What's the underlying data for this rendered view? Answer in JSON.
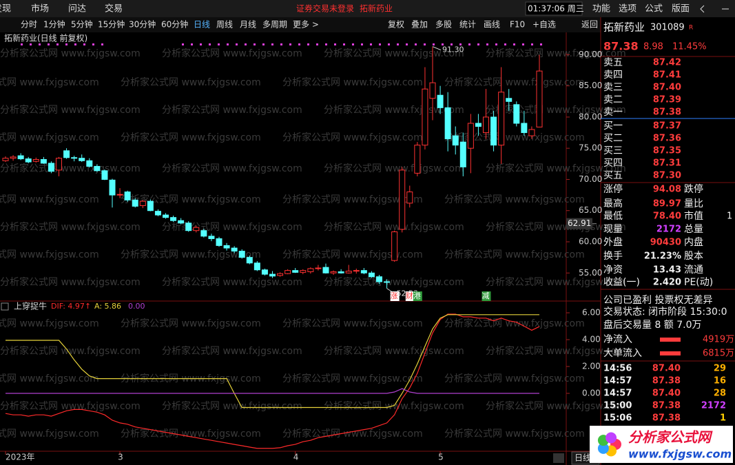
{
  "menu": {
    "left": [
      "发现",
      "市场",
      "问达",
      "交易"
    ],
    "notice": "证券交易未登录",
    "stock": "拓新药业",
    "clock": "01:37:06 周三",
    "right": [
      "功能",
      "选项",
      "公式",
      "版面"
    ]
  },
  "toolbar": {
    "periods": [
      "分时",
      "1分钟",
      "5分钟",
      "15分钟",
      "30分钟",
      "60分钟",
      "日线",
      "周线",
      "月线",
      "多周期",
      "更多 >"
    ],
    "active": 6,
    "tools": [
      "复权",
      "叠加",
      "多股",
      "统计",
      "画线",
      "F10",
      "+自选",
      "返回"
    ]
  },
  "chart_data": [
    {
      "type": "candlestick",
      "title": "拓新药业(日线 前复权)",
      "up_color": "#ff3232",
      "down_color": "#54ffff",
      "ylim": [
        50.5,
        91.7
      ],
      "yticks": [
        {
          "value": 90,
          "label": "90.00"
        },
        {
          "value": 85,
          "label": "85.00"
        },
        {
          "value": 80,
          "label": "80.00"
        },
        {
          "value": 75,
          "label": "75.00"
        },
        {
          "value": 70,
          "label": "70.00"
        },
        {
          "value": 65,
          "label": "65.00"
        },
        {
          "value": 60,
          "label": "60.00"
        },
        {
          "value": 55,
          "label": "55.00"
        }
      ],
      "cursor_value": 62.91,
      "annotations": [
        {
          "index": 56,
          "value": 91.3,
          "label": "91.30"
        },
        {
          "index": 50,
          "value": 52.53
        }
      ],
      "markers": [
        {
          "index": 51,
          "text": "涨",
          "color": "#ff3232"
        },
        {
          "index": 53,
          "text": "财",
          "color": "#ff3232"
        },
        {
          "index": 54,
          "text": "港",
          "color": "#2e9a3a"
        },
        {
          "index": 63,
          "text": "减",
          "color": "#2e9a3a"
        }
      ],
      "ohlc": [
        [
          73.0,
          73.7,
          72.8,
          73.4
        ],
        [
          73.4,
          73.9,
          73.0,
          73.6
        ],
        [
          73.8,
          74.2,
          73.1,
          73.3
        ],
        [
          73.3,
          73.6,
          72.6,
          72.8
        ],
        [
          72.9,
          73.5,
          72.7,
          73.2
        ],
        [
          73.2,
          73.6,
          72.5,
          72.6
        ],
        [
          72.6,
          72.9,
          71.0,
          71.3
        ],
        [
          71.5,
          73.6,
          70.5,
          73.4
        ],
        [
          74.6,
          75.0,
          73.3,
          73.5
        ],
        [
          73.5,
          73.8,
          72.9,
          73.4
        ],
        [
          73.4,
          74.0,
          72.8,
          73.0
        ],
        [
          73.0,
          73.4,
          71.9,
          72.1
        ],
        [
          72.1,
          72.4,
          71.2,
          71.4
        ],
        [
          71.4,
          71.6,
          69.9,
          70.0
        ],
        [
          69.9,
          70.1,
          65.5,
          67.5
        ],
        [
          67.5,
          68.6,
          67.0,
          67.6
        ],
        [
          68.0,
          68.2,
          66.4,
          66.7
        ],
        [
          66.7,
          67.0,
          65.5,
          65.7
        ],
        [
          65.8,
          66.7,
          65.4,
          66.5
        ],
        [
          66.5,
          66.8,
          64.9,
          65.0
        ],
        [
          64.9,
          65.2,
          64.1,
          64.3
        ],
        [
          64.3,
          64.6,
          63.7,
          63.9
        ],
        [
          63.9,
          64.2,
          63.2,
          63.4
        ],
        [
          63.4,
          63.8,
          62.8,
          63.0
        ],
        [
          63.0,
          63.3,
          61.6,
          61.8
        ],
        [
          61.8,
          62.6,
          61.5,
          62.3
        ],
        [
          61.8,
          62.1,
          60.7,
          60.9
        ],
        [
          60.9,
          61.3,
          60.1,
          60.5
        ],
        [
          60.5,
          60.8,
          59.2,
          59.4
        ],
        [
          59.4,
          59.8,
          58.6,
          59.0
        ],
        [
          59.0,
          59.3,
          58.2,
          58.5
        ],
        [
          58.5,
          58.8,
          57.3,
          57.5
        ],
        [
          57.5,
          57.8,
          56.4,
          56.6
        ],
        [
          56.6,
          56.9,
          55.3,
          55.5
        ],
        [
          55.5,
          55.7,
          54.6,
          54.8
        ],
        [
          54.8,
          55.3,
          54.2,
          54.5
        ],
        [
          54.6,
          55.1,
          54.4,
          54.9
        ],
        [
          54.9,
          55.6,
          54.8,
          55.4
        ],
        [
          55.4,
          55.8,
          55.0,
          55.1
        ],
        [
          55.1,
          55.6,
          54.8,
          55.4
        ],
        [
          55.2,
          55.9,
          54.9,
          55.7
        ],
        [
          55.7,
          56.3,
          55.4,
          55.8
        ],
        [
          55.9,
          56.5,
          54.9,
          55.0
        ],
        [
          55.0,
          55.4,
          54.7,
          55.2
        ],
        [
          55.2,
          55.6,
          54.9,
          55.0
        ],
        [
          55.0,
          56.3,
          54.9,
          55.3
        ],
        [
          55.3,
          55.7,
          54.9,
          55.4
        ],
        [
          55.4,
          55.8,
          54.8,
          55.0
        ],
        [
          55.0,
          55.3,
          54.2,
          54.4
        ],
        [
          54.4,
          54.7,
          53.2,
          53.6
        ],
        [
          53.6,
          54.0,
          52.53,
          53.5
        ],
        [
          57.0,
          61.8,
          56.8,
          61.6
        ],
        [
          62.0,
          72.0,
          61.5,
          71.5
        ],
        [
          66.2,
          69.0,
          65.5,
          68.0
        ],
        [
          71.0,
          76.0,
          70.5,
          75.5
        ],
        [
          75.5,
          88.0,
          74.8,
          84.5
        ],
        [
          83.0,
          91.3,
          79.5,
          85.5
        ],
        [
          83.5,
          85.0,
          80.5,
          81.5
        ],
        [
          81.5,
          84.0,
          74.5,
          76.5
        ],
        [
          77.0,
          78.5,
          74.0,
          75.5
        ],
        [
          76.0,
          77.5,
          70.5,
          72.0
        ],
        [
          75.0,
          80.5,
          71.0,
          79.0
        ],
        [
          79.0,
          80.5,
          77.0,
          78.5
        ],
        [
          77.5,
          84.5,
          76.5,
          80.0
        ],
        [
          80.0,
          81.0,
          74.5,
          75.5
        ],
        [
          75.5,
          88.0,
          72.5,
          84.0
        ],
        [
          83.0,
          84.5,
          81.0,
          82.5
        ],
        [
          82.0,
          82.5,
          78.5,
          79.0
        ],
        [
          79.0,
          81.0,
          77.0,
          77.5
        ],
        [
          77.0,
          78.5,
          76.5,
          78.0
        ],
        [
          78.4,
          89.97,
          78.4,
          87.38
        ]
      ]
    },
    {
      "type": "line",
      "title": "上穿捉牛",
      "categories": [
        "2023年",
        null,
        null,
        null,
        null,
        null,
        null,
        null,
        null,
        null,
        null,
        null,
        null,
        null,
        null,
        "3",
        null,
        null,
        null,
        null,
        null,
        null,
        null,
        null,
        null,
        null,
        null,
        null,
        null,
        null,
        null,
        null,
        null,
        null,
        null,
        null,
        null,
        null,
        "4",
        null,
        null,
        null,
        null,
        null,
        null,
        null,
        null,
        null,
        null,
        null,
        null,
        null,
        null,
        null,
        null,
        null,
        null,
        "5",
        null,
        null,
        null,
        null,
        null,
        null,
        null,
        null,
        null,
        null,
        null,
        null,
        null
      ],
      "ylim": [
        -4.31,
        6.31
      ],
      "yticks": [
        {
          "value": 6,
          "label": "6.00"
        },
        {
          "value": 4,
          "label": "4.00"
        },
        {
          "value": 2,
          "label": "2.00"
        },
        {
          "value": 0,
          "label": "0.00"
        }
      ],
      "series": [
        {
          "label": "DIF: 4.97↑",
          "color": "#ff2a2a",
          "values": [
            -1.5,
            -1.6,
            -1.6,
            -1.7,
            -1.6,
            -1.6,
            -1.7,
            -1.5,
            -1.3,
            -1.2,
            -1.2,
            -1.3,
            -1.4,
            -1.6,
            -2.0,
            -2.2,
            -2.3,
            -2.5,
            -2.6,
            -2.7,
            -2.8,
            -2.9,
            -3.0,
            -3.1,
            -3.2,
            -3.3,
            -3.4,
            -3.5,
            -3.6,
            -3.7,
            -3.8,
            -3.9,
            -4.0,
            -4.1,
            -4.1,
            -4.1,
            -4.05,
            -3.9,
            -3.8,
            -3.6,
            -3.5,
            -3.3,
            -3.2,
            -3.1,
            -3.0,
            -2.9,
            -2.8,
            -2.7,
            -2.6,
            -2.4,
            -2.2,
            -1.6,
            -0.4,
            0.4,
            1.5,
            3.0,
            4.5,
            5.5,
            5.9,
            5.9,
            5.7,
            5.7,
            5.6,
            5.6,
            5.4,
            5.6,
            5.4,
            5.3,
            5.0,
            4.7,
            4.97
          ]
        },
        {
          "label": "A: 5.86",
          "color": "#e6d23a",
          "values": [
            3.95,
            3.95,
            3.95,
            3.95,
            3.95,
            3.95,
            3.95,
            3.95,
            3.3,
            2.5,
            1.8,
            1.3,
            1.1,
            1.1,
            1.1,
            1.1,
            1.1,
            1.1,
            1.1,
            1.1,
            1.1,
            1.1,
            1.1,
            1.1,
            1.1,
            1.1,
            1.1,
            1.1,
            1.1,
            1.1,
            0.0,
            -1.05,
            -1.05,
            -1.05,
            -1.05,
            -1.05,
            -1.05,
            -1.05,
            -1.05,
            -1.05,
            -1.05,
            -1.05,
            -1.05,
            -1.05,
            -1.05,
            -1.05,
            -1.05,
            -1.05,
            -1.05,
            -1.05,
            -1.05,
            -0.9,
            0.0,
            1.0,
            2.2,
            3.5,
            4.8,
            5.6,
            5.86,
            5.86,
            5.86,
            5.86,
            5.86,
            5.86,
            5.86,
            5.86,
            5.86,
            5.86,
            5.86,
            5.86,
            5.86
          ]
        },
        {
          "label": "0.00",
          "color": "#b040d0",
          "values": [
            0,
            0,
            0,
            0,
            0,
            0,
            0,
            0,
            0,
            0,
            0,
            0,
            0,
            0,
            0,
            0,
            0,
            0,
            0,
            0,
            0,
            0,
            0,
            0,
            0,
            0,
            0,
            0,
            0,
            0,
            0,
            0,
            0,
            0,
            0,
            0,
            0,
            0,
            0,
            0,
            0,
            0,
            0,
            0,
            0,
            0,
            0,
            0,
            0,
            0,
            0,
            0.1,
            0.35,
            0.1,
            0,
            0,
            0,
            0,
            0,
            0,
            0,
            0,
            0,
            0,
            0,
            0,
            0,
            0,
            0,
            0,
            0
          ]
        }
      ],
      "period_tag": "日线"
    }
  ],
  "quote": {
    "name": "拓新药业",
    "code": "301089",
    "badge": "R",
    "price": "87.38",
    "change": "8.98",
    "pct": "11.45%",
    "asks": [
      [
        "卖五",
        "87.42"
      ],
      [
        "卖四",
        "87.41"
      ],
      [
        "卖三",
        "87.40"
      ],
      [
        "卖二",
        "87.39"
      ],
      [
        "卖一",
        "87.38"
      ]
    ],
    "bids": [
      [
        "买一",
        "87.37"
      ],
      [
        "买二",
        "87.36"
      ],
      [
        "买三",
        "87.35"
      ],
      [
        "买四",
        "87.31"
      ],
      [
        "买五",
        "87.30"
      ]
    ],
    "stats": [
      [
        "涨停",
        "94.08",
        "跌停"
      ],
      [
        "最高",
        "89.97",
        "量比"
      ],
      [
        "最低",
        "78.40",
        "市值",
        "1"
      ],
      [
        "现量",
        "2172",
        "总量"
      ],
      [
        "外盘",
        "90430",
        "内盘"
      ],
      [
        "换手",
        "21.23%",
        "股本"
      ],
      [
        "净资",
        "13.43",
        "流通"
      ],
      [
        "收益(一)",
        "2.420",
        "PE(动)"
      ]
    ],
    "status": [
      "公司已盈利 投票权无差异",
      "交易状态: 闭市阶段 15:30:0",
      "盘后交易量 8 额 7.0万"
    ],
    "flows": [
      [
        "净流入",
        "4919万"
      ],
      [
        "大单流入",
        "6815万"
      ]
    ],
    "trades": [
      {
        "time": "14:56",
        "price": "87.40",
        "volume": "29",
        "color": "#ffb000"
      },
      {
        "time": "14:57",
        "price": "87.38",
        "volume": "16",
        "color": "#ffb000"
      },
      {
        "time": "14:57",
        "price": "87.40",
        "volume": "28",
        "color": "#ffb000"
      },
      {
        "time": "15:00",
        "price": "87.38",
        "volume": "2172",
        "color": "#d040ff"
      },
      {
        "time": "15:06",
        "price": "87.38",
        "volume": "1",
        "color": "#ffd000"
      }
    ]
  },
  "watermark": "分析家公式网 www.fxjgsw.com",
  "logo": {
    "name": "分析家公式网",
    "url": "www.fxjgsw.com"
  }
}
